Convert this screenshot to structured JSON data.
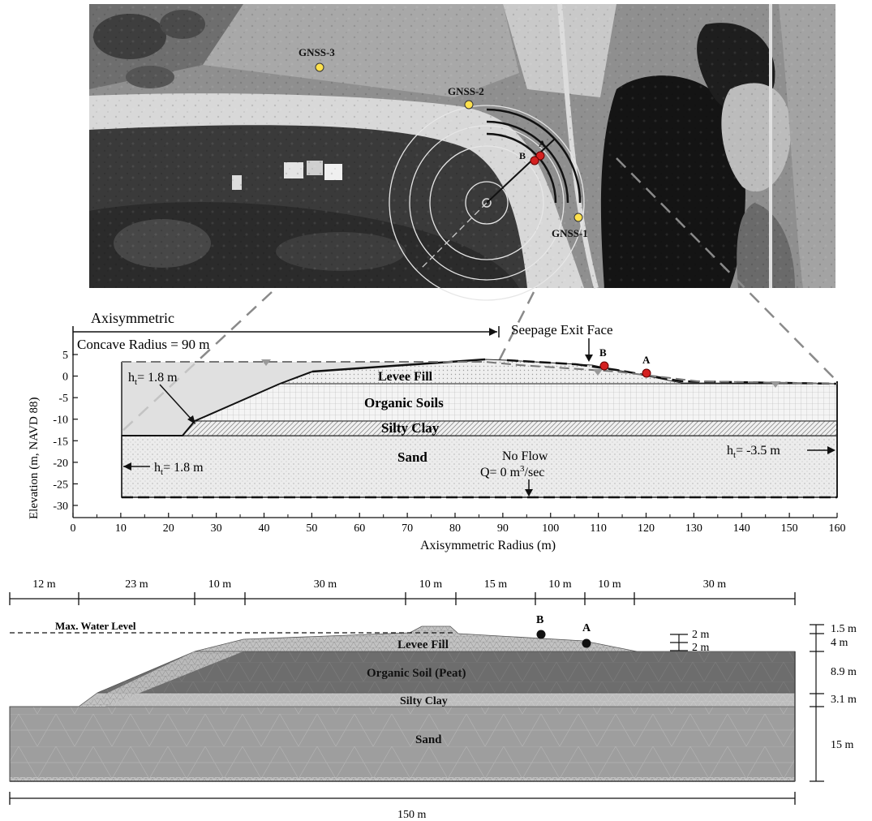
{
  "aerial": {
    "gnss": [
      {
        "label": "GNSS-3"
      },
      {
        "label": "GNSS-2"
      },
      {
        "label": "GNSS-1"
      }
    ],
    "point_a": "A",
    "point_b": "B"
  },
  "section": {
    "axisymmetric_label": "Axisymmetric",
    "concave_radius_label": "Concave Radius = 90 m",
    "seepage_label": "Seepage Exit Face",
    "point_a": "A",
    "point_b": "B",
    "ht_left_top": {
      "main": "h",
      "sub": "t",
      "rest": "= 1.8 m"
    },
    "ht_left_bottom": {
      "main": "h",
      "sub": "t",
      "rest": "= 1.8 m"
    },
    "ht_right": {
      "main": "h",
      "sub": "t",
      "rest": "= -3.5 m"
    },
    "no_flow_label": "No Flow",
    "q_label": {
      "main": "Q= 0 m",
      "sup": "3",
      "rest": "/sec"
    },
    "layers": {
      "levee_fill": "Levee Fill",
      "organic_soils": "Organic Soils",
      "silty_clay": "Silty Clay",
      "sand": "Sand"
    },
    "xlabel": "Axisymmetric Radius (m)",
    "ylabel": "Elevation (m, NAVD 88)",
    "x_ticks": [
      0,
      10,
      20,
      30,
      40,
      50,
      60,
      70,
      80,
      90,
      100,
      110,
      120,
      130,
      140,
      150,
      160
    ],
    "y_ticks": [
      5,
      0,
      -5,
      -10,
      -15,
      -20,
      -25,
      -30
    ],
    "xlim": [
      0,
      160
    ],
    "ylim": [
      -30,
      5
    ]
  },
  "mesh": {
    "widths": [
      "12 m",
      "23 m",
      "10 m",
      "30 m",
      "10 m",
      "15 m",
      "10 m",
      "10 m",
      "30 m"
    ],
    "max_water_label": "Max. Water Level",
    "point_a": "A",
    "point_b": "B",
    "layers": {
      "levee_fill": "Levee Fill",
      "organic_soil": "Organic Soil (Peat)",
      "silty_clay": "Silty Clay",
      "sand": "Sand"
    },
    "small_dims": [
      "2 m",
      "2 m"
    ],
    "right_dims": [
      "1.5 m",
      "4 m",
      "8.9 m",
      "3.1 m",
      "15 m"
    ],
    "total_width": "150 m"
  }
}
